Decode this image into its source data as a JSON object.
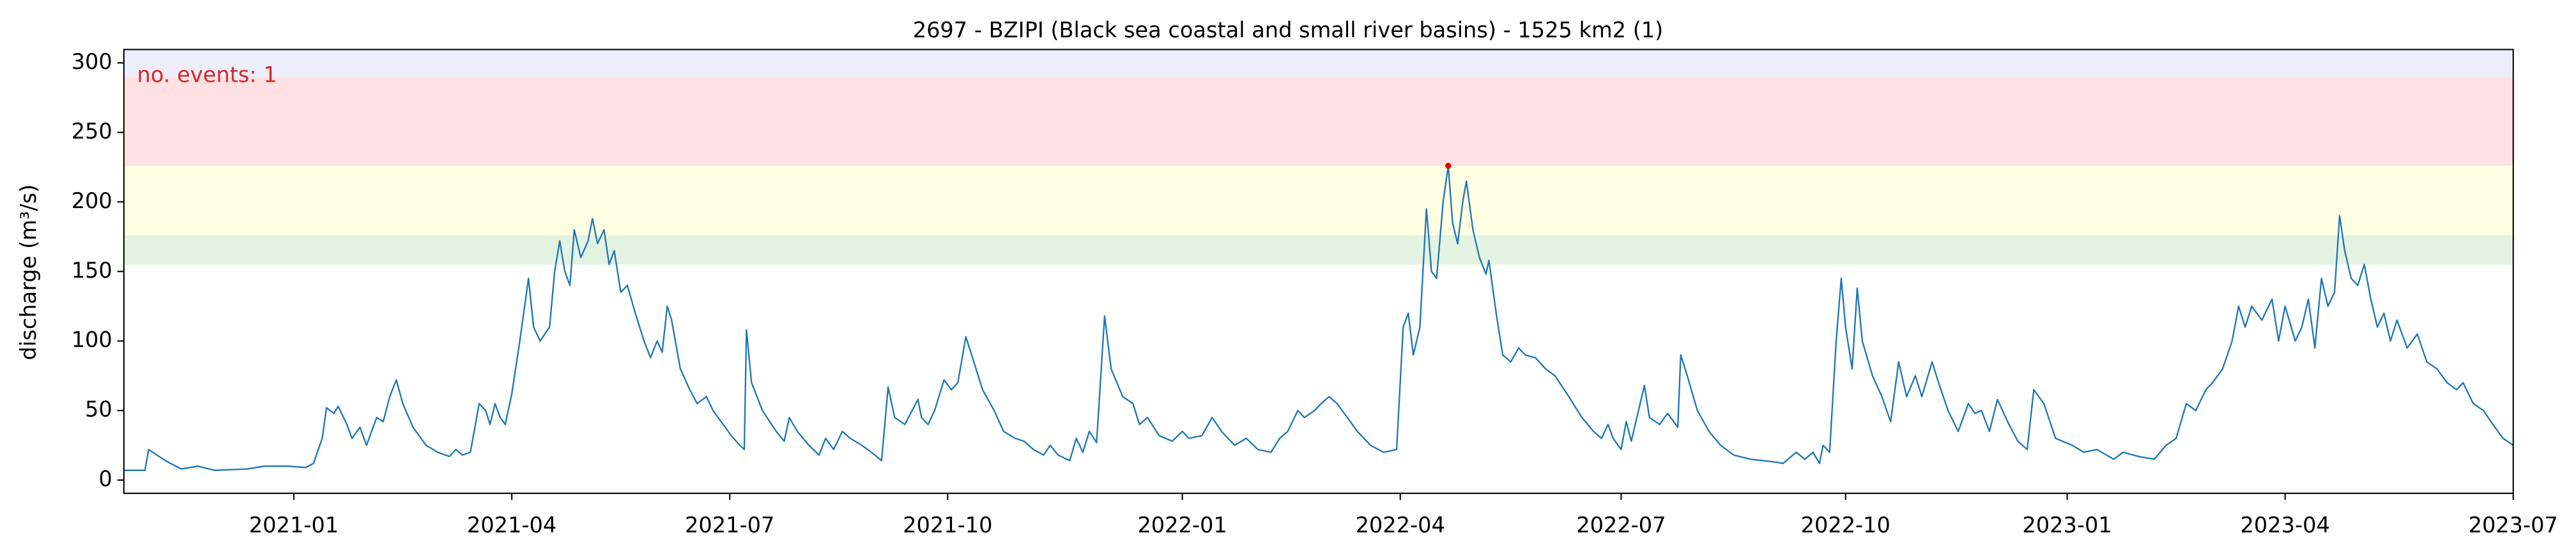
{
  "chart_data": {
    "type": "line",
    "title": "2697 - BZIPI (Black sea coastal and small river basins) - 1525 km2 (1)",
    "y_label": "discharge (m³/s)",
    "annotation": "no. events: 1",
    "annotation_color": "#d62728",
    "color": "#1f77b4",
    "xlim": [
      -2.34,
      30.55
    ],
    "xticks": [
      {
        "value": 0,
        "label": "2021-01"
      },
      {
        "value": 3,
        "label": "2021-04"
      },
      {
        "value": 6,
        "label": "2021-07"
      },
      {
        "value": 9,
        "label": "2021-10"
      },
      {
        "value": 12.23,
        "label": "2022-01"
      },
      {
        "value": 15.23,
        "label": "2022-04"
      },
      {
        "value": 18.27,
        "label": "2022-07"
      },
      {
        "value": 21.36,
        "label": "2022-10"
      },
      {
        "value": 24.41,
        "label": "2023-01"
      },
      {
        "value": 27.41,
        "label": "2023-04"
      },
      {
        "value": 30.55,
        "label": "2023-07"
      }
    ],
    "ylim": [
      -9.5,
      309.6
    ],
    "yticks": [
      0,
      50,
      100,
      150,
      200,
      250,
      300
    ],
    "thresholds": [
      {
        "from": 155,
        "to": 176,
        "color": "#e3f2e1"
      },
      {
        "from": 176,
        "to": 226,
        "color": "#fefee2"
      },
      {
        "from": 226,
        "to": 290,
        "color": "#ffe0e3"
      },
      {
        "from": 290,
        "to": 309.6,
        "color": "#eeeefb"
      }
    ],
    "events": {
      "x": [
        15.89
      ],
      "values": [
        226
      ],
      "color": "#e00000"
    },
    "x": [
      -2.34,
      -2.05,
      -2.0,
      -1.77,
      -1.55,
      -1.32,
      -1.09,
      -0.64,
      -0.41,
      -0.07,
      0.16,
      0.27,
      0.39,
      0.45,
      0.55,
      0.61,
      0.73,
      0.8,
      0.91,
      1.0,
      1.14,
      1.23,
      1.32,
      1.41,
      1.5,
      1.64,
      1.82,
      1.98,
      2.14,
      2.23,
      2.32,
      2.43,
      2.55,
      2.64,
      2.7,
      2.77,
      2.84,
      2.91,
      3.0,
      3.11,
      3.23,
      3.3,
      3.39,
      3.52,
      3.59,
      3.66,
      3.73,
      3.8,
      3.86,
      3.95,
      4.05,
      4.11,
      4.18,
      4.27,
      4.34,
      4.41,
      4.5,
      4.59,
      4.7,
      4.82,
      4.91,
      5.0,
      5.07,
      5.14,
      5.2,
      5.32,
      5.45,
      5.55,
      5.68,
      5.77,
      5.91,
      6.02,
      6.14,
      6.2,
      6.23,
      6.3,
      6.45,
      6.64,
      6.75,
      6.82,
      6.93,
      7.09,
      7.23,
      7.32,
      7.43,
      7.55,
      7.66,
      7.82,
      7.95,
      8.09,
      8.18,
      8.27,
      8.41,
      8.59,
      8.64,
      8.73,
      8.82,
      8.95,
      9.05,
      9.14,
      9.25,
      9.36,
      9.48,
      9.64,
      9.77,
      9.93,
      10.05,
      10.18,
      10.32,
      10.41,
      10.52,
      10.68,
      10.77,
      10.86,
      10.95,
      11.05,
      11.16,
      11.25,
      11.41,
      11.55,
      11.64,
      11.75,
      11.91,
      12.09,
      12.23,
      12.32,
      12.5,
      12.64,
      12.77,
      12.95,
      13.11,
      13.27,
      13.45,
      13.57,
      13.68,
      13.82,
      13.91,
      14.05,
      14.14,
      14.25,
      14.36,
      14.5,
      14.64,
      14.82,
      15.0,
      15.18,
      15.27,
      15.34,
      15.41,
      15.5,
      15.59,
      15.66,
      15.73,
      15.82,
      15.89,
      15.95,
      16.02,
      16.09,
      16.14,
      16.23,
      16.32,
      16.41,
      16.45,
      16.55,
      16.64,
      16.75,
      16.86,
      16.95,
      17.09,
      17.23,
      17.36,
      17.55,
      17.73,
      17.89,
      18.0,
      18.09,
      18.16,
      18.27,
      18.34,
      18.41,
      18.59,
      18.66,
      18.8,
      18.91,
      19.05,
      19.09,
      19.18,
      19.32,
      19.48,
      19.64,
      19.82,
      20.05,
      20.39,
      20.5,
      20.68,
      20.8,
      20.91,
      21.0,
      21.05,
      21.14,
      21.23,
      21.3,
      21.36,
      21.45,
      21.52,
      21.59,
      21.73,
      21.86,
      21.98,
      22.09,
      22.2,
      22.32,
      22.41,
      22.55,
      22.64,
      22.77,
      22.91,
      23.05,
      23.14,
      23.23,
      23.34,
      23.45,
      23.59,
      23.73,
      23.86,
      23.95,
      24.09,
      24.25,
      24.48,
      24.64,
      24.82,
      25.05,
      25.18,
      25.39,
      25.61,
      25.77,
      25.91,
      26.05,
      26.18,
      26.32,
      26.41,
      26.55,
      26.68,
      26.77,
      26.86,
      26.95,
      27.09,
      27.23,
      27.32,
      27.41,
      27.55,
      27.64,
      27.73,
      27.82,
      27.91,
      28.0,
      28.09,
      28.16,
      28.23,
      28.32,
      28.41,
      28.5,
      28.59,
      28.68,
      28.77,
      28.86,
      28.95,
      29.09,
      29.23,
      29.36,
      29.5,
      29.64,
      29.77,
      29.86,
      30.0,
      30.14,
      30.27,
      30.41,
      30.55
    ],
    "values": [
      7,
      7,
      22,
      14,
      8,
      10,
      7,
      8,
      10,
      10,
      9,
      12,
      30,
      52,
      48,
      53,
      40,
      30,
      38,
      25,
      45,
      42,
      60,
      72,
      55,
      38,
      25,
      20,
      17,
      22,
      18,
      20,
      55,
      50,
      40,
      55,
      45,
      40,
      62,
      100,
      145,
      110,
      100,
      110,
      150,
      172,
      150,
      140,
      180,
      160,
      172,
      188,
      170,
      180,
      155,
      165,
      135,
      140,
      120,
      100,
      88,
      100,
      92,
      125,
      115,
      80,
      65,
      55,
      60,
      50,
      40,
      32,
      25,
      22,
      108,
      70,
      50,
      35,
      28,
      45,
      35,
      25,
      18,
      30,
      22,
      35,
      30,
      25,
      20,
      14,
      67,
      45,
      40,
      58,
      45,
      40,
      50,
      72,
      65,
      70,
      103,
      85,
      65,
      50,
      35,
      30,
      28,
      22,
      18,
      25,
      18,
      14,
      30,
      20,
      35,
      27,
      118,
      80,
      60,
      55,
      40,
      45,
      32,
      28,
      35,
      30,
      32,
      45,
      35,
      25,
      30,
      22,
      20,
      30,
      35,
      50,
      45,
      50,
      55,
      60,
      55,
      45,
      35,
      25,
      20,
      22,
      110,
      120,
      90,
      110,
      195,
      150,
      145,
      200,
      226,
      185,
      170,
      200,
      215,
      180,
      160,
      148,
      158,
      120,
      90,
      85,
      95,
      90,
      88,
      80,
      75,
      60,
      45,
      35,
      30,
      40,
      30,
      22,
      42,
      28,
      68,
      45,
      40,
      48,
      38,
      90,
      75,
      50,
      35,
      25,
      18,
      15,
      13,
      12,
      20,
      15,
      20,
      12,
      25,
      20,
      100,
      145,
      110,
      80,
      138,
      100,
      75,
      60,
      42,
      85,
      60,
      75,
      60,
      85,
      70,
      50,
      35,
      55,
      48,
      50,
      35,
      58,
      42,
      28,
      22,
      65,
      55,
      30,
      25,
      20,
      22,
      15,
      20,
      17,
      15,
      25,
      30,
      55,
      50,
      65,
      70,
      80,
      100,
      125,
      110,
      125,
      115,
      130,
      100,
      125,
      100,
      110,
      130,
      95,
      145,
      125,
      135,
      190,
      165,
      145,
      140,
      155,
      130,
      110,
      120,
      100,
      115,
      95,
      105,
      85,
      80,
      70,
      65,
      70,
      55,
      50,
      40,
      30,
      25
    ]
  }
}
